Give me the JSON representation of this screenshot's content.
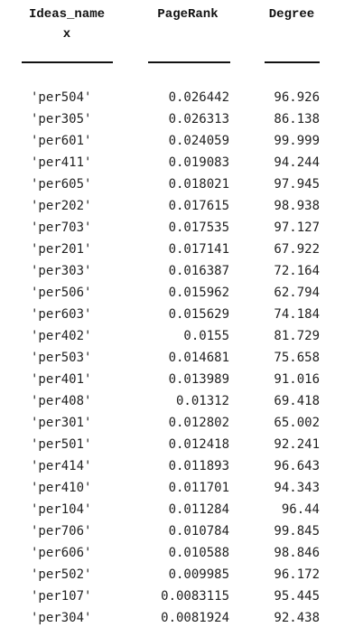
{
  "table": {
    "headers": {
      "name_line1": "Ideas_name",
      "name_line2": "x",
      "pagerank": "PageRank",
      "degree": "Degree"
    },
    "rows": [
      {
        "name": "'per504'",
        "pagerank": "0.026442",
        "degree": "96.926"
      },
      {
        "name": "'per305'",
        "pagerank": "0.026313",
        "degree": "86.138"
      },
      {
        "name": "'per601'",
        "pagerank": "0.024059",
        "degree": "99.999"
      },
      {
        "name": "'per411'",
        "pagerank": "0.019083",
        "degree": "94.244"
      },
      {
        "name": "'per605'",
        "pagerank": "0.018021",
        "degree": "97.945"
      },
      {
        "name": "'per202'",
        "pagerank": "0.017615",
        "degree": "98.938"
      },
      {
        "name": "'per703'",
        "pagerank": "0.017535",
        "degree": "97.127"
      },
      {
        "name": "'per201'",
        "pagerank": "0.017141",
        "degree": "67.922"
      },
      {
        "name": "'per303'",
        "pagerank": "0.016387",
        "degree": "72.164"
      },
      {
        "name": "'per506'",
        "pagerank": "0.015962",
        "degree": "62.794"
      },
      {
        "name": "'per603'",
        "pagerank": "0.015629",
        "degree": "74.184"
      },
      {
        "name": "'per402'",
        "pagerank": "0.0155",
        "degree": "81.729"
      },
      {
        "name": "'per503'",
        "pagerank": "0.014681",
        "degree": "75.658"
      },
      {
        "name": "'per401'",
        "pagerank": "0.013989",
        "degree": "91.016"
      },
      {
        "name": "'per408'",
        "pagerank": "0.01312",
        "degree": "69.418"
      },
      {
        "name": "'per301'",
        "pagerank": "0.012802",
        "degree": "65.002"
      },
      {
        "name": "'per501'",
        "pagerank": "0.012418",
        "degree": "92.241"
      },
      {
        "name": "'per414'",
        "pagerank": "0.011893",
        "degree": "96.643"
      },
      {
        "name": "'per410'",
        "pagerank": "0.011701",
        "degree": "94.343"
      },
      {
        "name": "'per104'",
        "pagerank": "0.011284",
        "degree": "96.44"
      },
      {
        "name": "'per706'",
        "pagerank": "0.010784",
        "degree": "99.845"
      },
      {
        "name": "'per606'",
        "pagerank": "0.010588",
        "degree": "98.846"
      },
      {
        "name": "'per502'",
        "pagerank": "0.009985",
        "degree": "96.172"
      },
      {
        "name": "'per107'",
        "pagerank": "0.0083115",
        "degree": "95.445"
      },
      {
        "name": "'per304'",
        "pagerank": "0.0081924",
        "degree": "92.438"
      }
    ]
  }
}
